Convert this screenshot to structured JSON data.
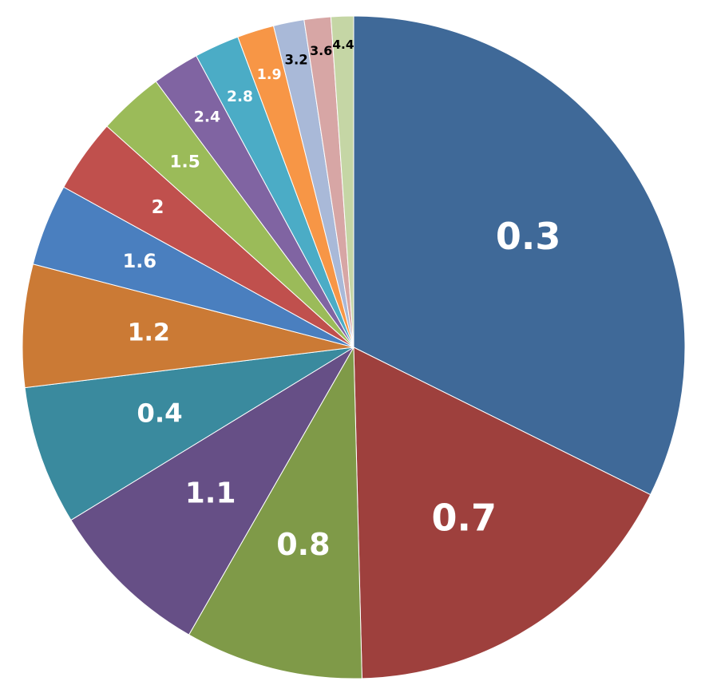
{
  "chart_data": {
    "type": "pie",
    "categories": [
      "0.3",
      "0.7",
      "0.8",
      "1.1",
      "0.4",
      "1.2",
      "1.6",
      "2",
      "1.5",
      "2.4",
      "2.8",
      "1.9",
      "3.2",
      "3.6",
      "4.4"
    ],
    "values": [
      32.4,
      17.3,
      8.7,
      8.0,
      6.8,
      6.0,
      4.0,
      3.6,
      3.2,
      2.3,
      2.2,
      1.8,
      1.5,
      1.3,
      1.1
    ],
    "colors": [
      "#3F6998",
      "#9E403D",
      "#7F9A48",
      "#664F86",
      "#3A8A9E",
      "#CB7A35",
      "#4A7FBF",
      "#C0504D",
      "#9BBB59",
      "#8064A2",
      "#4BACC6",
      "#F79646",
      "#A9B9D8",
      "#D7A6A5",
      "#C5D6A5"
    ],
    "label_colors": [
      "#ffffff",
      "#ffffff",
      "#ffffff",
      "#ffffff",
      "#ffffff",
      "#ffffff",
      "#ffffff",
      "#ffffff",
      "#ffffff",
      "#ffffff",
      "#ffffff",
      "#ffffff",
      "#000000",
      "#000000",
      "#000000"
    ]
  }
}
